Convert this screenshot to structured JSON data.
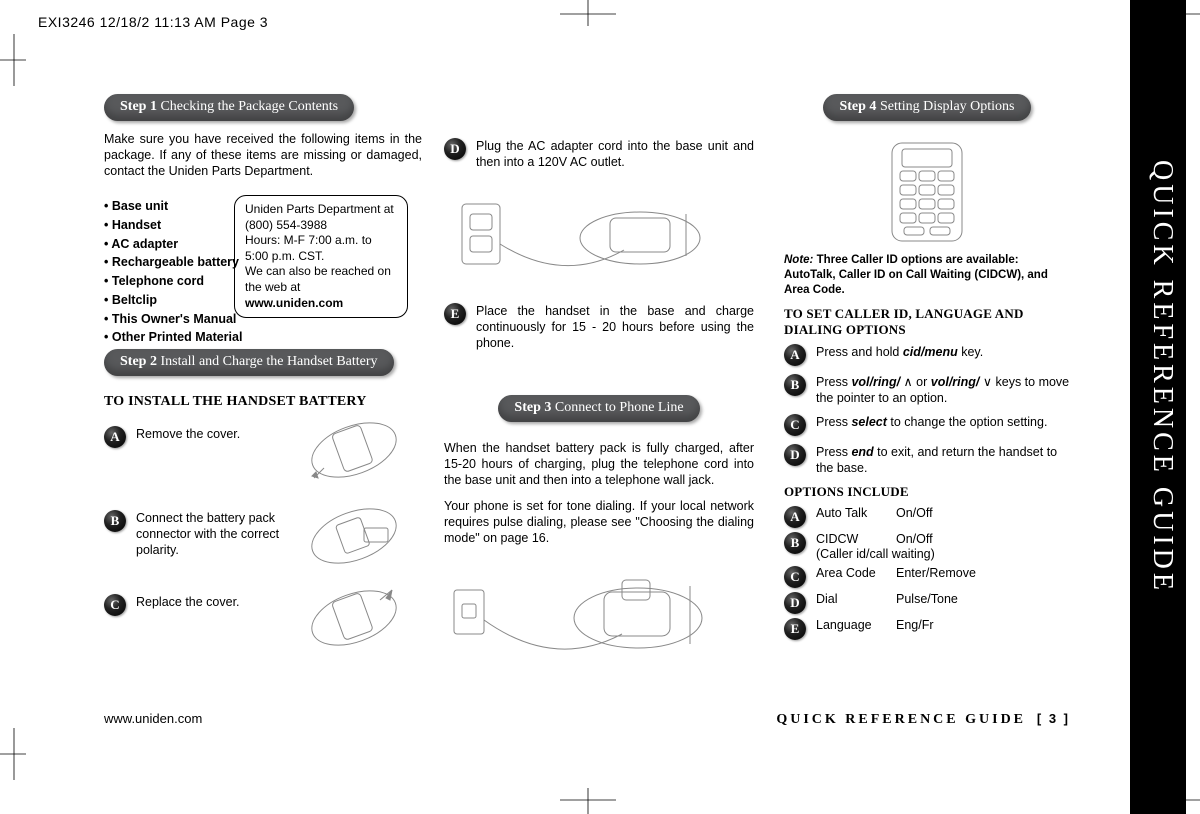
{
  "header": {
    "crop_text": "EXI3246  12/18/2  11:13 AM  Page 3"
  },
  "side_tab": {
    "text": "QUICK REFERENCE GUIDE"
  },
  "step1": {
    "title_prefix": "Step 1",
    "title_rest": "  Checking the Package Contents",
    "intro": "Make sure you have received the following items in the package. If any of these items are missing or damaged, contact the Uniden Parts Department.",
    "bullets": [
      "Base unit",
      "Handset",
      "AC adapter",
      "Rechargeable battery",
      "Telephone cord",
      "Beltclip",
      "This Owner's Manual",
      "Other Printed Material"
    ],
    "info_box": {
      "line1": "Uniden Parts Department at (800) 554-3988",
      "line2": "Hours: M-F 7:00 a.m. to 5:00 p.m. CST.",
      "line3_a": "We can also be reached on the web at ",
      "line3_b": "www.uniden.com"
    }
  },
  "step2": {
    "title_prefix": "Step 2",
    "title_rest": "  Install and Charge the Handset Battery",
    "subhead": "TO INSTALL THE HANDSET BATTERY",
    "a": "Remove the cover.",
    "b": "Connect the battery pack connector with the correct polarity.",
    "c": "Replace the cover."
  },
  "col2": {
    "d": "Plug the AC adapter cord into the base unit and then into a 120V AC outlet.",
    "e": "Place the handset in the base and charge continuously for 15 - 20 hours before using the phone."
  },
  "step3": {
    "title_prefix": "Step 3",
    "title_rest": "  Connect to Phone Line",
    "para1": "When the handset battery pack is fully charged, after 15-20 hours of charging, plug the telephone cord into the base unit and then into a telephone wall jack.",
    "para2": "Your phone is set for tone dialing. If your local network requires pulse dialing, please see \"Choosing the dialing mode\" on page 16."
  },
  "step4": {
    "title_prefix": "Step 4",
    "title_rest": "  Setting Display Options",
    "note_label": "Note:",
    "note_text": "  Three Caller ID options are available: AutoTalk, Caller ID on Call Waiting (CIDCW), and Area Code.",
    "subhead": "TO SET CALLER ID, LANGUAGE AND DIALING OPTIONS",
    "a_pre": "Press and hold ",
    "a_em": "cid/menu",
    "a_post": " key.",
    "b_pre": "Press ",
    "b_em1": "vol/ring/",
    "b_mid": " or ",
    "b_em2": "vol/ring/",
    "b_post": " keys to move the pointer to an option.",
    "c_pre": "Press ",
    "c_em": "select",
    "c_post": " to change the option setting.",
    "d_pre": "Press ",
    "d_em": "end",
    "d_post": " to exit, and return the handset to the base.",
    "opts_head": "OPTIONS INCLUDE",
    "opts": [
      {
        "l": "A",
        "label": "Auto Talk",
        "val": "On/Off",
        "sub": ""
      },
      {
        "l": "B",
        "label": "CIDCW",
        "val": "On/Off",
        "sub": "(Caller id/call waiting)"
      },
      {
        "l": "C",
        "label": "Area Code",
        "val": "Enter/Remove",
        "sub": ""
      },
      {
        "l": "D",
        "label": "Dial",
        "val": "Pulse/Tone",
        "sub": ""
      },
      {
        "l": "E",
        "label": "Language",
        "val": "Eng/Fr",
        "sub": ""
      }
    ]
  },
  "footer": {
    "url": "www.uniden.com",
    "guide": "QUICK REFERENCE GUIDE",
    "page": "[ 3 ]"
  },
  "colors": {
    "pill_bg": "#58595b",
    "black": "#000000",
    "gray_stroke": "#888888"
  }
}
